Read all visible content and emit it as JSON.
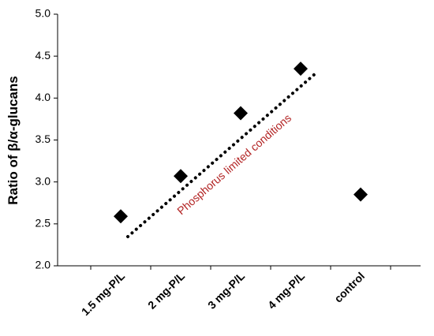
{
  "chart_data": {
    "type": "scatter",
    "y_label": "Ratio of β/α-glucans",
    "annotation": "Phosphorus limited conditions",
    "categories": [
      "1.5 mg-P/L",
      "2 mg-P/L",
      "3 mg-P/L",
      "4 mg-P/L",
      "control"
    ],
    "values": [
      2.59,
      3.07,
      3.82,
      4.35,
      2.85
    ],
    "color": "#000000",
    "annotation_color": "#b22222",
    "ylim": [
      2,
      5
    ],
    "yticks": [
      {
        "value": 2,
        "label": "2.0"
      },
      2.5,
      {
        "value": 3,
        "label": "3.0"
      },
      3.5,
      {
        "value": 4,
        "label": "4.0"
      },
      4.5,
      {
        "value": 5,
        "label": "5.0"
      }
    ]
  }
}
